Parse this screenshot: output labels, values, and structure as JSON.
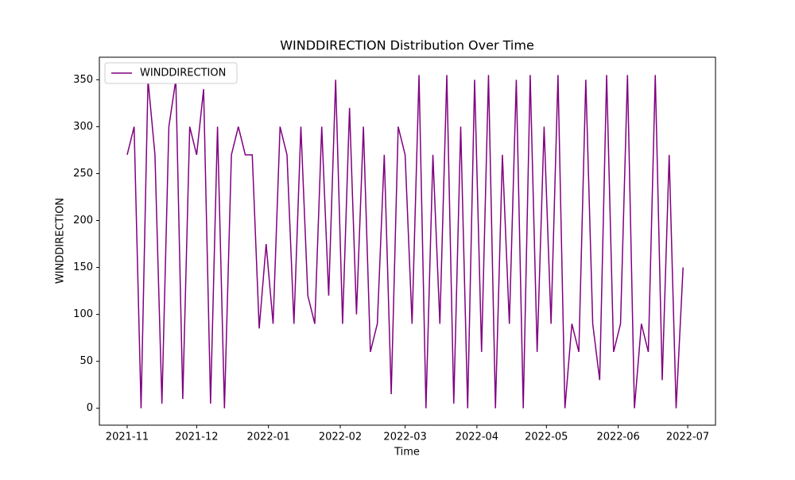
{
  "chart_data": {
    "type": "line",
    "title": "WINDDIRECTION Distribution Over Time",
    "x_label": "Time",
    "y_label": "WINDDIRECTION",
    "x": [
      "2021-11-01",
      "2021-11-04",
      "2021-11-07",
      "2021-11-10",
      "2021-11-13",
      "2021-11-16",
      "2021-11-19",
      "2021-11-22",
      "2021-11-25",
      "2021-11-28",
      "2021-12-01",
      "2021-12-04",
      "2021-12-07",
      "2021-12-10",
      "2021-12-13",
      "2021-12-16",
      "2021-12-19",
      "2021-12-22",
      "2021-12-25",
      "2021-12-28",
      "2021-12-31",
      "2022-01-03",
      "2022-01-06",
      "2022-01-09",
      "2022-01-12",
      "2022-01-15",
      "2022-01-18",
      "2022-01-21",
      "2022-01-24",
      "2022-01-27",
      "2022-01-30",
      "2022-02-02",
      "2022-02-05",
      "2022-02-08",
      "2022-02-11",
      "2022-02-14",
      "2022-02-17",
      "2022-02-20",
      "2022-02-23",
      "2022-02-26",
      "2022-03-01",
      "2022-03-04",
      "2022-03-07",
      "2022-03-10",
      "2022-03-13",
      "2022-03-16",
      "2022-03-19",
      "2022-03-22",
      "2022-03-25",
      "2022-03-28",
      "2022-03-31",
      "2022-04-03",
      "2022-04-06",
      "2022-04-09",
      "2022-04-12",
      "2022-04-15",
      "2022-04-18",
      "2022-04-21",
      "2022-04-24",
      "2022-04-27",
      "2022-04-30",
      "2022-05-03",
      "2022-05-06",
      "2022-05-09",
      "2022-05-12",
      "2022-05-15",
      "2022-05-18",
      "2022-05-21",
      "2022-05-24",
      "2022-05-27",
      "2022-05-30",
      "2022-06-02",
      "2022-06-05",
      "2022-06-08",
      "2022-06-11",
      "2022-06-14",
      "2022-06-17",
      "2022-06-20",
      "2022-06-23",
      "2022-06-26",
      "2022-06-29"
    ],
    "series": [
      {
        "name": "WINDDIRECTION",
        "color": "#800080",
        "values": [
          270,
          300,
          0,
          350,
          270,
          5,
          300,
          350,
          10,
          300,
          270,
          340,
          5,
          300,
          0,
          270,
          300,
          270,
          270,
          85,
          175,
          90,
          300,
          270,
          90,
          300,
          120,
          90,
          300,
          120,
          350,
          90,
          320,
          100,
          300,
          60,
          90,
          270,
          15,
          300,
          270,
          90,
          355,
          0,
          270,
          90,
          355,
          5,
          300,
          0,
          350,
          60,
          355,
          0,
          270,
          90,
          350,
          0,
          355,
          60,
          300,
          90,
          355,
          0,
          90,
          60,
          350,
          90,
          30,
          355,
          60,
          90,
          355,
          0,
          90,
          60,
          355,
          30,
          270,
          0,
          150
        ]
      }
    ],
    "xlim": [
      "2021-10-20",
      "2022-07-13"
    ],
    "xticks": [
      {
        "value": "2021-11-01",
        "label": "2021-11"
      },
      {
        "value": "2021-12-01",
        "label": "2021-12"
      },
      {
        "value": "2022-01-01",
        "label": "2022-01"
      },
      {
        "value": "2022-02-01",
        "label": "2022-02"
      },
      {
        "value": "2022-03-01",
        "label": "2022-03"
      },
      {
        "value": "2022-04-01",
        "label": "2022-04"
      },
      {
        "value": "2022-05-01",
        "label": "2022-05"
      },
      {
        "value": "2022-06-01",
        "label": "2022-06"
      },
      {
        "value": "2022-07-01",
        "label": "2022-07"
      }
    ],
    "ylim": [
      -18,
      374
    ],
    "yticks": [
      0,
      50,
      100,
      150,
      200,
      250,
      300,
      350
    ],
    "legend": "upper left",
    "grid": false
  }
}
